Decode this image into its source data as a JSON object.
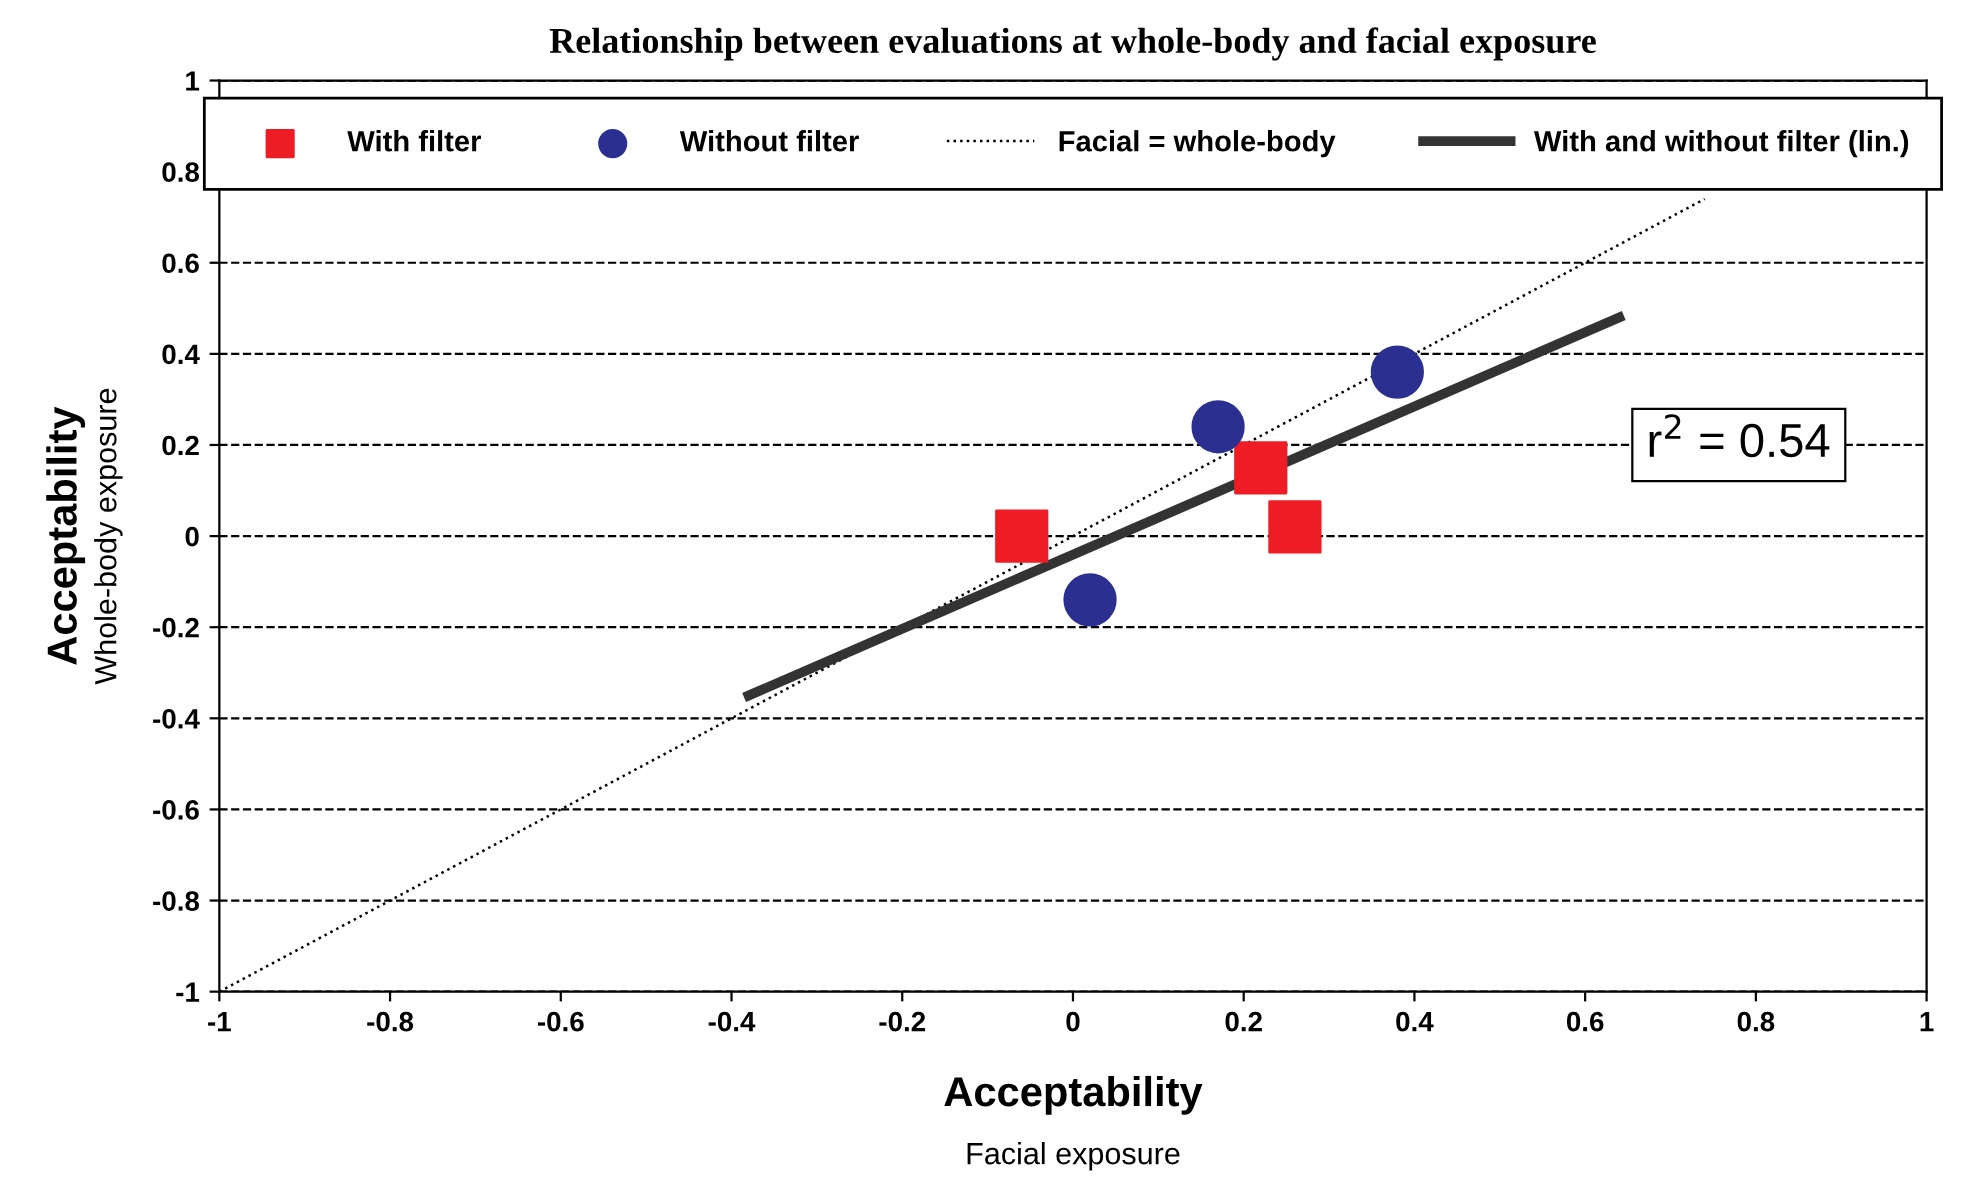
{
  "chart_data": {
    "type": "scatter",
    "title": "Relationship between evaluations at whole-body and facial exposure",
    "xlabel": "Acceptability\nFacial exposure",
    "ylabel": "Acceptability\nWhole-body exposure",
    "series": [
      {
        "name": "With filter",
        "marker": "square",
        "color": "#ee1c25",
        "x": [
          -0.06,
          0.22,
          0.26
        ],
        "values": [
          0.0,
          0.15,
          0.02
        ]
      },
      {
        "name": "Without filter",
        "marker": "circle",
        "color": "#2b3090",
        "x": [
          0.17,
          0.02,
          0.38
        ],
        "values": [
          0.24,
          -0.14,
          0.36
        ]
      },
      {
        "name": "Facial = whole-body",
        "type": "line",
        "line_style": "dotted",
        "color": "#000000",
        "x": [
          -1,
          0.74
        ],
        "values": [
          -1,
          0.74
        ]
      },
      {
        "name": "With and without filter (lin.)",
        "type": "line",
        "line_style": "solid",
        "color": "#333333",
        "x": [
          -0.38,
          0.64
        ],
        "values": [
          -0.35,
          0.48
        ]
      }
    ],
    "annotations": [
      "r$^{2}$ = 0.54"
    ],
    "xlim": [
      -1,
      1
    ],
    "ylim": [
      -1,
      1
    ],
    "xticks": [
      -1,
      -0.8,
      -0.6,
      -0.4,
      -0.2,
      0,
      0.2,
      0.4,
      0.6,
      0.8,
      1
    ],
    "yticks": [
      -1,
      -0.8,
      -0.6,
      -0.4,
      -0.2,
      0,
      0.2,
      0.4,
      0.6,
      0.8,
      1
    ],
    "grid": "y",
    "legend": "top"
  }
}
